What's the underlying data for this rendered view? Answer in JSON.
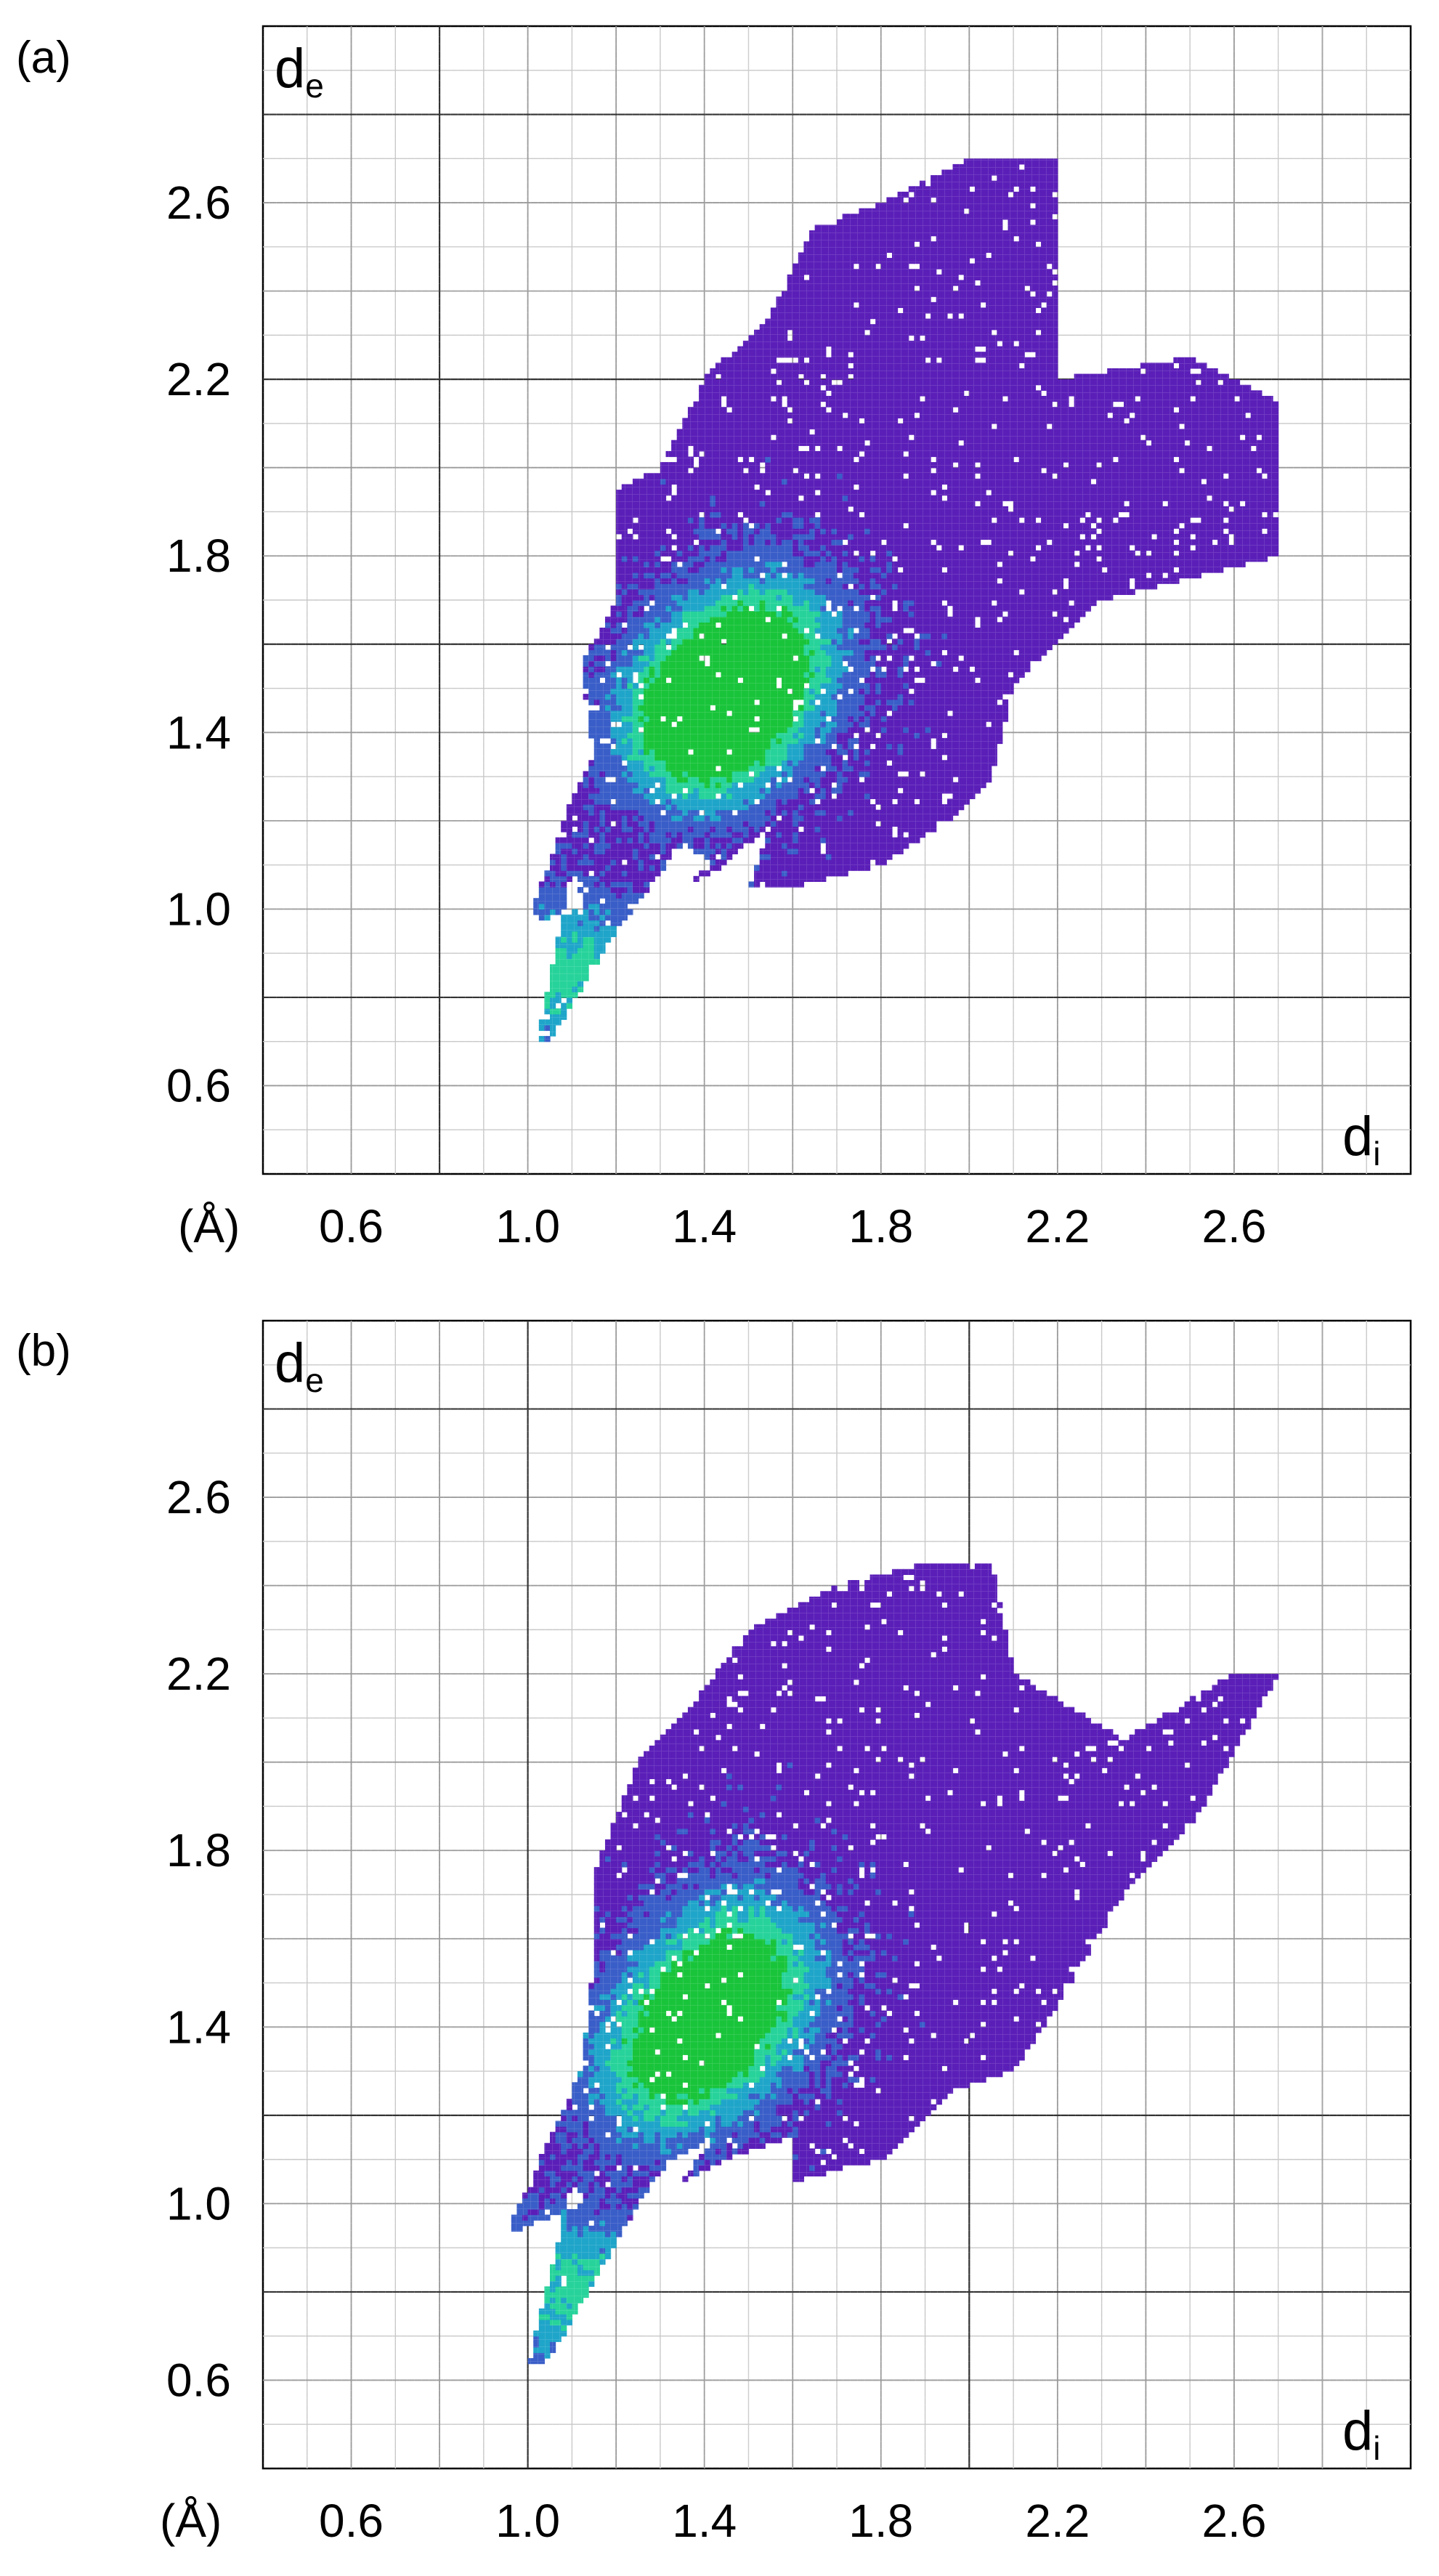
{
  "figure": {
    "panels": [
      {
        "label": "(a)"
      },
      {
        "label": "(b)"
      }
    ]
  },
  "chart_data": [
    {
      "type": "heatmap",
      "panel": "(a)",
      "title": "",
      "xlabel": "d",
      "xlabel_sub": "i",
      "ylabel": "d",
      "ylabel_sub": "e",
      "unit_label": "(Å)",
      "xlim": [
        0.4,
        3.0
      ],
      "ylim": [
        0.4,
        3.0
      ],
      "xticks": [
        "0.6",
        "1.0",
        "1.4",
        "1.8",
        "2.2",
        "2.6"
      ],
      "yticks": [
        "0.6",
        "1.0",
        "1.4",
        "1.8",
        "2.2",
        "2.6"
      ],
      "grid": true,
      "major_gridlines_x": [
        0.8
      ],
      "major_gridlines_y": [
        0.8,
        1.6,
        2.2,
        2.8
      ],
      "colormap": [
        "#5b1fb8",
        "#3a5ec8",
        "#1fa5c9",
        "#27d39a",
        "#19c43b"
      ],
      "region_outline": [
        [
          1.0,
          0.97
        ],
        [
          1.13,
          1.0
        ],
        [
          1.1,
          1.1
        ],
        [
          1.02,
          0.7
        ],
        [
          1.05,
          0.7
        ],
        [
          1.2,
          0.95
        ],
        [
          1.35,
          1.15
        ],
        [
          1.42,
          1.1
        ],
        [
          1.35,
          1.05
        ],
        [
          1.45,
          1.1
        ],
        [
          1.55,
          1.2
        ],
        [
          1.5,
          1.05
        ],
        [
          1.6,
          1.05
        ],
        [
          1.8,
          1.1
        ],
        [
          1.95,
          1.2
        ],
        [
          2.05,
          1.3
        ],
        [
          2.1,
          1.5
        ],
        [
          2.3,
          1.7
        ],
        [
          2.5,
          1.75
        ],
        [
          2.7,
          1.8
        ],
        [
          2.7,
          2.15
        ],
        [
          2.5,
          2.25
        ],
        [
          2.2,
          2.2
        ],
        [
          2.2,
          2.7
        ],
        [
          2.0,
          2.7
        ],
        [
          1.8,
          2.6
        ],
        [
          1.65,
          2.55
        ],
        [
          1.55,
          2.35
        ],
        [
          1.4,
          2.2
        ],
        [
          1.3,
          2.0
        ],
        [
          1.2,
          1.95
        ],
        [
          1.2,
          1.7
        ],
        [
          1.12,
          1.55
        ],
        [
          1.15,
          1.35
        ],
        [
          1.1,
          1.25
        ]
      ],
      "density_peaks": [
        {
          "x": 1.45,
          "y": 1.5,
          "level": 4
        },
        {
          "x": 1.38,
          "y": 1.4,
          "level": 4
        },
        {
          "x": 1.55,
          "y": 1.6,
          "level": 3
        },
        {
          "x": 1.1,
          "y": 0.85,
          "level": 3
        }
      ]
    },
    {
      "type": "heatmap",
      "panel": "(b)",
      "title": "",
      "xlabel": "d",
      "xlabel_sub": "i",
      "ylabel": "d",
      "ylabel_sub": "e",
      "unit_label": "(Å)",
      "xlim": [
        0.4,
        3.0
      ],
      "ylim": [
        0.4,
        3.0
      ],
      "xticks": [
        "0.6",
        "1.0",
        "1.4",
        "1.8",
        "2.2",
        "2.6"
      ],
      "yticks": [
        "0.6",
        "1.0",
        "1.4",
        "1.8",
        "2.2",
        "2.6"
      ],
      "grid": true,
      "major_gridlines_x": [
        1.0,
        2.0
      ],
      "major_gridlines_y": [
        0.8,
        1.2,
        2.8
      ],
      "colormap": [
        "#5b1fb8",
        "#3a5ec8",
        "#1fa5c9",
        "#27d39a",
        "#19c43b"
      ],
      "region_outline": [
        [
          0.95,
          0.93
        ],
        [
          1.13,
          1.0
        ],
        [
          1.1,
          1.05
        ],
        [
          1.0,
          0.63
        ],
        [
          1.05,
          0.65
        ],
        [
          1.25,
          1.0
        ],
        [
          1.32,
          1.1
        ],
        [
          1.42,
          1.15
        ],
        [
          1.35,
          1.05
        ],
        [
          1.45,
          1.1
        ],
        [
          1.6,
          1.15
        ],
        [
          1.6,
          1.05
        ],
        [
          1.8,
          1.1
        ],
        [
          1.95,
          1.25
        ],
        [
          2.1,
          1.3
        ],
        [
          2.2,
          1.45
        ],
        [
          2.35,
          1.7
        ],
        [
          2.5,
          1.85
        ],
        [
          2.7,
          2.2
        ],
        [
          2.6,
          2.2
        ],
        [
          2.35,
          2.05
        ],
        [
          2.1,
          2.2
        ],
        [
          2.05,
          2.45
        ],
        [
          1.9,
          2.45
        ],
        [
          1.7,
          2.4
        ],
        [
          1.5,
          2.3
        ],
        [
          1.35,
          2.1
        ],
        [
          1.25,
          2.0
        ],
        [
          1.15,
          1.75
        ],
        [
          1.15,
          1.55
        ],
        [
          1.12,
          1.3
        ]
      ],
      "density_peaks": [
        {
          "x": 1.42,
          "y": 1.42,
          "level": 4
        },
        {
          "x": 1.5,
          "y": 1.55,
          "level": 3
        },
        {
          "x": 1.3,
          "y": 1.3,
          "level": 3
        },
        {
          "x": 1.1,
          "y": 0.8,
          "level": 3
        }
      ]
    }
  ]
}
